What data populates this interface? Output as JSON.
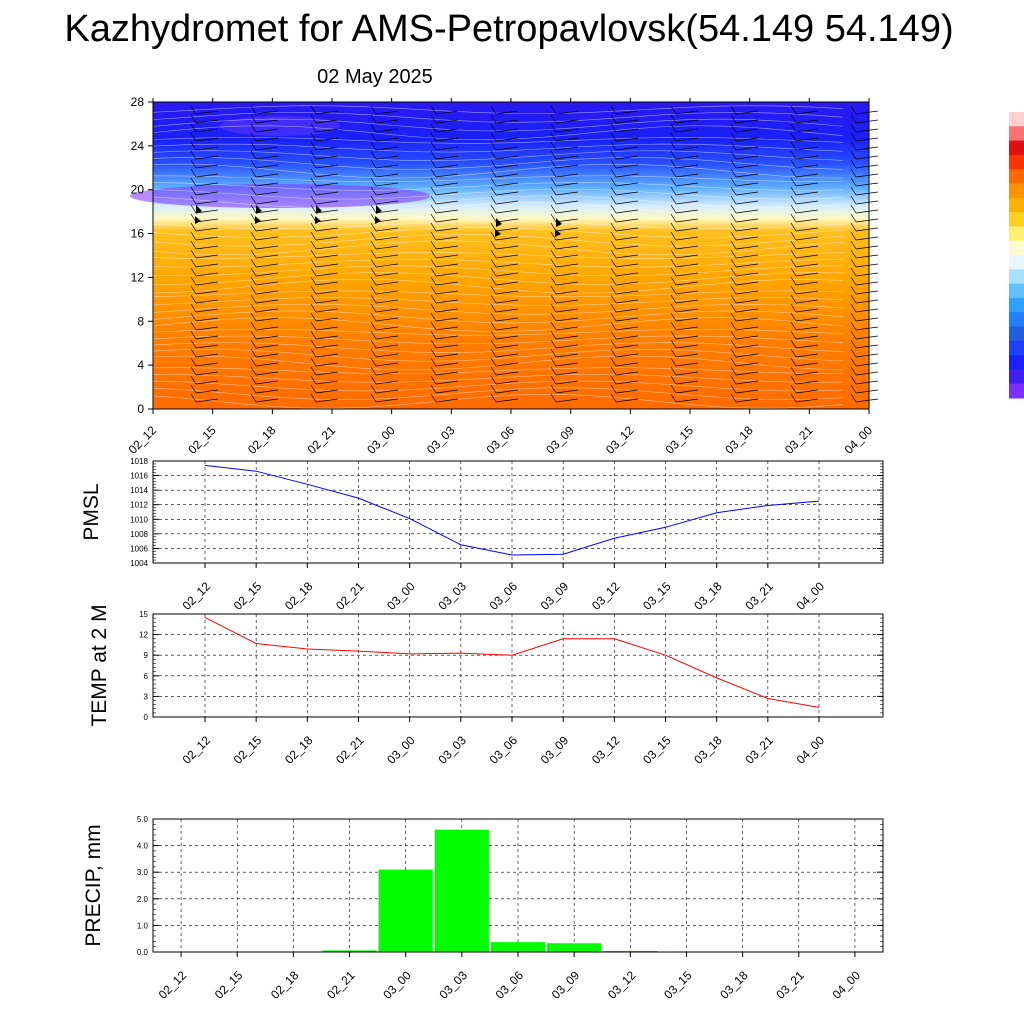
{
  "title": "Kazhydromet for AMS-Petropavlovsk(54.149 54.149)",
  "subtitle": "02 May 2025",
  "chart_data": [
    {
      "type": "heatmap",
      "name": "temperature-wind cross-section",
      "y_ticks": [
        "0",
        "4",
        "8",
        "12",
        "16",
        "20",
        "24",
        "28"
      ],
      "ylim": [
        0,
        28
      ],
      "x_ticks": [
        "02_12",
        "02_15",
        "02_18",
        "02_21",
        "03_00",
        "03_03",
        "03_06",
        "03_09",
        "03_12",
        "03_15",
        "03_18",
        "03_21",
        "04_00"
      ],
      "colors": [
        "#ff6a00",
        "#ffa500",
        "#ffd040",
        "#fff0a0",
        "#e8f4ff",
        "#7ec8ff",
        "#3070ff",
        "#1a30ff",
        "#3010f0",
        "#6a30ff"
      ],
      "grid": false
    },
    {
      "type": "line",
      "ylabel": "PMSL",
      "categories": [
        "02_12",
        "02_15",
        "02_18",
        "02_21",
        "03_00",
        "03_03",
        "03_06",
        "03_09",
        "03_12",
        "03_15",
        "03_18",
        "03_21",
        "04_00"
      ],
      "values": [
        1017.4,
        1016.6,
        1014.8,
        1012.9,
        1010.1,
        1006.5,
        1005.1,
        1005.2,
        1007.4,
        1008.9,
        1010.9,
        1011.9,
        1012.5
      ],
      "ylim": [
        1004,
        1018
      ],
      "y_ticks": [
        "1004",
        "1006",
        "1008",
        "1010",
        "1012",
        "1014",
        "1016",
        "1018"
      ],
      "color": "#0000ff",
      "grid": true
    },
    {
      "type": "line",
      "ylabel": "TEMP at 2 M",
      "categories": [
        "02_12",
        "02_15",
        "02_18",
        "02_21",
        "03_00",
        "03_03",
        "03_06",
        "03_09",
        "03_12",
        "03_15",
        "03_18",
        "03_21",
        "04_00"
      ],
      "values": [
        14.5,
        10.7,
        9.9,
        9.6,
        9.2,
        9.3,
        9.0,
        11.4,
        11.4,
        9.0,
        5.7,
        2.7,
        1.4
      ],
      "ylim": [
        0,
        15
      ],
      "y_ticks": [
        "0",
        "3",
        "6",
        "9",
        "12",
        "15"
      ],
      "color": "#ff0000",
      "grid": true
    },
    {
      "type": "bar",
      "ylabel": "PRECIP, mm",
      "categories": [
        "02_12",
        "02_15",
        "02_18",
        "02_21",
        "03_00",
        "03_03",
        "03_06",
        "03_09",
        "03_12",
        "03_15",
        "03_18",
        "03_21",
        "04_00"
      ],
      "values": [
        0.0,
        0.0,
        0.0,
        0.06,
        3.1,
        4.6,
        0.37,
        0.33,
        0.04,
        0.0,
        0.0,
        0.0,
        0.0
      ],
      "ylim": [
        0,
        5
      ],
      "y_ticks": [
        "0.0",
        "1.0",
        "2.0",
        "3.0",
        "4.0",
        "5.0"
      ],
      "color": "#00ff00",
      "grid": true
    }
  ]
}
